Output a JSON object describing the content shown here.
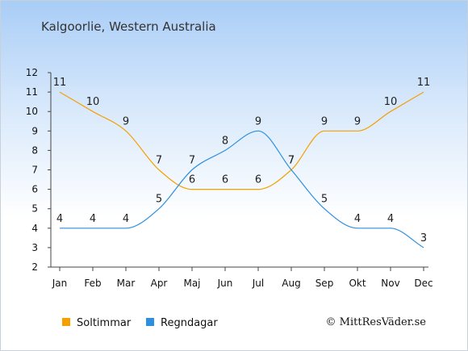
{
  "chart_data": {
    "type": "line",
    "title": "Kalgoorlie, Western Australia",
    "categories": [
      "Jan",
      "Feb",
      "Mar",
      "Apr",
      "Maj",
      "Jun",
      "Jul",
      "Aug",
      "Sep",
      "Okt",
      "Nov",
      "Dec"
    ],
    "ylim": [
      2,
      12
    ],
    "yticks": [
      2,
      3,
      4,
      5,
      6,
      7,
      8,
      9,
      10,
      11,
      12
    ],
    "grid": false,
    "legend_position": "bottom-left",
    "series": [
      {
        "name": "Soltimmar",
        "color": "#f5a000",
        "values": [
          11,
          10,
          9,
          7,
          6,
          6,
          6,
          7,
          9,
          9,
          10,
          11
        ]
      },
      {
        "name": "Regndagar",
        "color": "#2e8fe0",
        "values": [
          4,
          4,
          4,
          5,
          7,
          8,
          9,
          7,
          5,
          4,
          4,
          3
        ]
      }
    ],
    "credit": "© MittResVäder.se"
  }
}
